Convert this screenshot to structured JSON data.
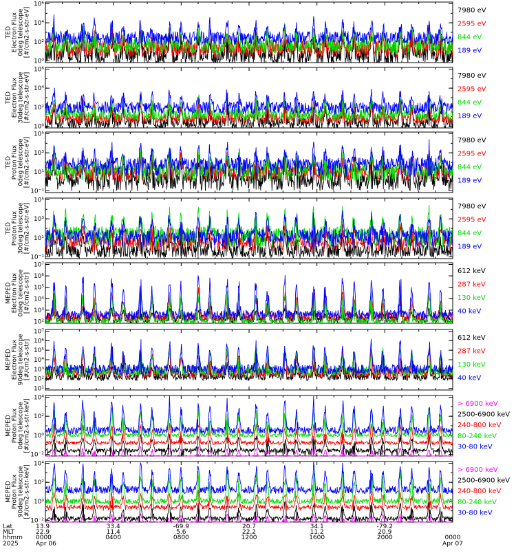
{
  "chart_data": [
    {
      "type": "line",
      "ylabel_lines": [
        "TED",
        "Electron Flux",
        "0deg telescope",
        "[#/cm2-s-str-eV]"
      ],
      "y_tick_exponents": [
        0,
        2,
        4,
        6
      ],
      "log_y": true,
      "series": [
        {
          "name": "7980 eV",
          "color": "#000000",
          "baseline_exp": 0.6,
          "spread": 2.0,
          "peak": 3.0,
          "low_exp": 0
        },
        {
          "name": "2595 eV",
          "color": "#ff0000",
          "baseline_exp": 1.3,
          "spread": 1.8,
          "peak": 3.2,
          "low_exp": 0.8
        },
        {
          "name": "844 eV",
          "color": "#00dd00",
          "baseline_exp": 1.6,
          "spread": 1.8,
          "peak": 3.6,
          "low_exp": 1.0
        },
        {
          "name": "189 eV",
          "color": "#0000ff",
          "baseline_exp": 2.4,
          "spread": 1.4,
          "peak": 4.4,
          "low_exp": 1.8
        }
      ]
    },
    {
      "type": "line",
      "ylabel_lines": [
        "TED",
        "Electron Flux",
        "30deg telescope",
        "[#/cm2-s-str-eV]"
      ],
      "y_tick_exponents": [
        0,
        2,
        4,
        6
      ],
      "log_y": true,
      "series": [
        {
          "name": "7980 eV",
          "color": "#000000",
          "baseline_exp": 0.3,
          "spread": 1.2,
          "peak": 2.6,
          "low_exp": 0
        },
        {
          "name": "2595 eV",
          "color": "#ff0000",
          "baseline_exp": 0.8,
          "spread": 1.0,
          "peak": 2.8,
          "low_exp": 0.3
        },
        {
          "name": "844 eV",
          "color": "#00dd00",
          "baseline_exp": 1.2,
          "spread": 1.2,
          "peak": 3.2,
          "low_exp": 0.6
        },
        {
          "name": "189 eV",
          "color": "#0000ff",
          "baseline_exp": 2.0,
          "spread": 1.2,
          "peak": 3.8,
          "low_exp": 1.2
        }
      ]
    },
    {
      "type": "line",
      "ylabel_lines": [
        "TED",
        "Proton Flux",
        "0deg telescope",
        "[#/cm2-s-str-eV]"
      ],
      "y_tick_exponents": [
        -1,
        1,
        3,
        5
      ],
      "log_y": true,
      "series": [
        {
          "name": "7980 eV",
          "color": "#000000",
          "baseline_exp": 0.2,
          "spread": 1.6,
          "peak": 2.6,
          "low_exp": -1
        },
        {
          "name": "2595 eV",
          "color": "#ff0000",
          "baseline_exp": 1.0,
          "spread": 1.4,
          "peak": 3.0,
          "low_exp": 0
        },
        {
          "name": "844 eV",
          "color": "#00dd00",
          "baseline_exp": 1.2,
          "spread": 1.4,
          "peak": 3.2,
          "low_exp": 0
        },
        {
          "name": "189 eV",
          "color": "#0000ff",
          "baseline_exp": 1.8,
          "spread": 1.4,
          "peak": 4.0,
          "low_exp": 0.5
        }
      ]
    },
    {
      "type": "line",
      "ylabel_lines": [
        "TED",
        "Proton Flux",
        "30deg telescope",
        "[#/cm2-s-str-eV]"
      ],
      "y_tick_exponents": [
        -1,
        1,
        3,
        5
      ],
      "log_y": true,
      "series": [
        {
          "name": "7980 eV",
          "color": "#000000",
          "baseline_exp": -0.4,
          "spread": 1.4,
          "peak": 1.8,
          "low_exp": -1
        },
        {
          "name": "2595 eV",
          "color": "#ff0000",
          "baseline_exp": 0.6,
          "spread": 1.2,
          "peak": 2.4,
          "low_exp": -0.5
        },
        {
          "name": "844 eV",
          "color": "#00dd00",
          "baseline_exp": 1.4,
          "spread": 1.6,
          "peak": 4.0,
          "low_exp": 0
        },
        {
          "name": "189 eV",
          "color": "#0000ff",
          "baseline_exp": 1.2,
          "spread": 1.4,
          "peak": 3.6,
          "low_exp": 0
        }
      ]
    },
    {
      "type": "line",
      "ylabel_lines": [
        "MEPED",
        "Electron Flux",
        "0deg telescope",
        "[#/cm2-s-str]"
      ],
      "y_tick_exponents": [
        2,
        3,
        4,
        5,
        6,
        7
      ],
      "log_y": true,
      "series": [
        {
          "name": "612 keV",
          "color": "#000000",
          "baseline_exp": 2.2,
          "spread": 0.6,
          "peak": 3.2,
          "low_exp": 2.0
        },
        {
          "name": "287 keV",
          "color": "#ff0000",
          "baseline_exp": 2.4,
          "spread": 0.8,
          "peak": 4.8,
          "low_exp": 2.2
        },
        {
          "name": "130 keV",
          "color": "#00dd00",
          "baseline_exp": 2.0,
          "spread": 0.6,
          "peak": 5.0,
          "low_exp": 1.9
        },
        {
          "name": "40 keV",
          "color": "#0000ff",
          "baseline_exp": 2.6,
          "spread": 0.8,
          "peak": 6.4,
          "low_exp": 2.3
        }
      ]
    },
    {
      "type": "line",
      "ylabel_lines": [
        "MEPED",
        "Electron Flux",
        "90deg telescope",
        "[#/cm2-s-str]"
      ],
      "y_tick_exponents": [
        1,
        2,
        3,
        4,
        5,
        6,
        7
      ],
      "log_y": true,
      "series": [
        {
          "name": "612 keV",
          "color": "#000000",
          "baseline_exp": 2.2,
          "spread": 0.8,
          "peak": 3.6,
          "low_exp": 1.9
        },
        {
          "name": "287 keV",
          "color": "#ff0000",
          "baseline_exp": 2.6,
          "spread": 1.0,
          "peak": 5.2,
          "low_exp": 2.2
        },
        {
          "name": "130 keV",
          "color": "#00dd00",
          "baseline_exp": 2.8,
          "spread": 1.0,
          "peak": 5.6,
          "low_exp": 2.3
        },
        {
          "name": "40 keV",
          "color": "#0000ff",
          "baseline_exp": 3.0,
          "spread": 1.0,
          "peak": 6.2,
          "low_exp": 2.4
        }
      ]
    },
    {
      "type": "line",
      "ylabel_lines": [
        "MEPED",
        "Proton Flux",
        "0deg telescope",
        "[#/cm2-s-str-keV]"
      ],
      "y_tick_exponents": [
        -2,
        0,
        2,
        4
      ],
      "log_y": true,
      "series": [
        {
          "name": "> 6900 keV",
          "color": "#ff00ff",
          "baseline_exp": -2.2,
          "spread": 0.2,
          "peak": -1.2,
          "low_exp": -2.5
        },
        {
          "name": "2500-6900 keV",
          "color": "#000000",
          "baseline_exp": -1.6,
          "spread": 0.4,
          "peak": 0.2,
          "low_exp": -2.2
        },
        {
          "name": "240-800 keV",
          "color": "#ff0000",
          "baseline_exp": -0.8,
          "spread": 0.4,
          "peak": 1.4,
          "low_exp": -1.0
        },
        {
          "name": "80-240 keV",
          "color": "#00dd00",
          "baseline_exp": 0.0,
          "spread": 0.4,
          "peak": 3.0,
          "low_exp": -0.2
        },
        {
          "name": "30-80 keV",
          "color": "#0000ff",
          "baseline_exp": 0.5,
          "spread": 0.8,
          "peak": 4.0,
          "low_exp": 0.3
        }
      ]
    },
    {
      "type": "line",
      "ylabel_lines": [
        "MEPED",
        "Proton Flux",
        "90deg telescope",
        "[#/cm2-s-str-keV]"
      ],
      "y_tick_exponents": [
        -2,
        0,
        2,
        4
      ],
      "log_y": true,
      "series": [
        {
          "name": "> 6900 keV",
          "color": "#ff00ff",
          "baseline_exp": -2.2,
          "spread": 0.2,
          "peak": -1.2,
          "low_exp": -2.5
        },
        {
          "name": "2500-6900 keV",
          "color": "#000000",
          "baseline_exp": -1.8,
          "spread": 0.4,
          "peak": 0.0,
          "low_exp": -2.2
        },
        {
          "name": "240-800 keV",
          "color": "#ff0000",
          "baseline_exp": -0.6,
          "spread": 0.4,
          "peak": 1.2,
          "low_exp": -1.0
        },
        {
          "name": "80-240 keV",
          "color": "#00dd00",
          "baseline_exp": 0.0,
          "spread": 0.6,
          "peak": 3.4,
          "low_exp": -0.2
        },
        {
          "name": "30-80 keV",
          "color": "#0000ff",
          "baseline_exp": 1.2,
          "spread": 0.8,
          "peak": 4.2,
          "low_exp": 0.8
        }
      ]
    }
  ],
  "x_axis": {
    "row_labels": [
      "Lat",
      "MLT",
      "hhmm",
      "2025"
    ],
    "columns": [
      {
        "lat": "13.9",
        "mlt": "22.9",
        "hhmm": "0000",
        "date": "Apr 06"
      },
      {
        "lat": "33.4",
        "mlt": "11.4",
        "hhmm": "0400",
        "date": ""
      },
      {
        "lat": "-69.9",
        "mlt": "5.6",
        "hhmm": "0800",
        "date": ""
      },
      {
        "lat": "20.7",
        "mlt": "22.2",
        "hhmm": "1200",
        "date": ""
      },
      {
        "lat": "34.1",
        "mlt": "11.2",
        "hhmm": "1600",
        "date": ""
      },
      {
        "lat": "-79.2",
        "mlt": "20.9",
        "hhmm": "2000",
        "date": ""
      },
      {
        "lat": "",
        "mlt": "",
        "hhmm": "0000",
        "date": "Apr 07"
      }
    ],
    "hours_span": 24,
    "orbit_hours": 1.7
  }
}
